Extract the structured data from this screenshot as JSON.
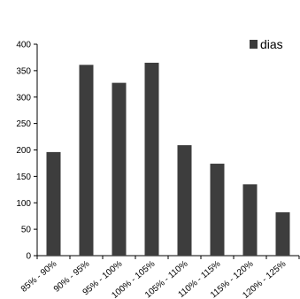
{
  "chart_data": {
    "type": "bar",
    "title": "",
    "xlabel": "",
    "ylabel": "",
    "categories": [
      "85% - 90%",
      "90% - 95%",
      "95% - 100%",
      "100% - 105%",
      "105% - 110%",
      "110% - 115%",
      "115% - 120%",
      "120% - 125%"
    ],
    "series": [
      {
        "name": "dias",
        "values": [
          196,
          361,
          327,
          365,
          209,
          174,
          135,
          82
        ]
      }
    ],
    "ylim": [
      0,
      400
    ],
    "yticks": [
      0,
      50,
      100,
      150,
      200,
      250,
      300,
      350,
      400
    ],
    "grid": false,
    "legend_position": "top-right",
    "bar_color": "#3d3d3d"
  }
}
